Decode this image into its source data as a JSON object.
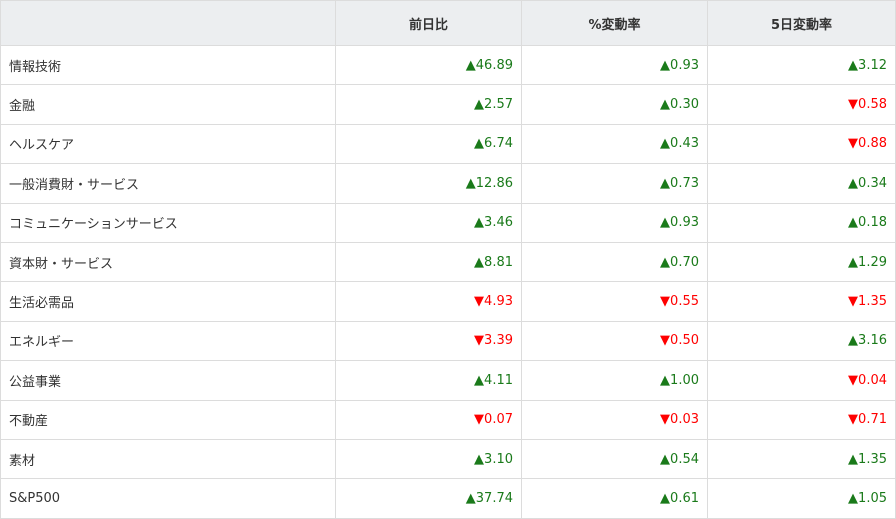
{
  "headers": [
    "",
    "前日比",
    "%変動率",
    "5日変動率"
  ],
  "colors": {
    "up": "#1a7a1a",
    "down": "#ff0000"
  },
  "rows": [
    {
      "name": "情報技術",
      "vals": [
        [
          "up",
          "46.89"
        ],
        [
          "up",
          "0.93"
        ],
        [
          "up",
          "3.12"
        ]
      ]
    },
    {
      "name": "金融",
      "vals": [
        [
          "up",
          "2.57"
        ],
        [
          "up",
          "0.30"
        ],
        [
          "down",
          "0.58"
        ]
      ]
    },
    {
      "name": "ヘルスケア",
      "vals": [
        [
          "up",
          "6.74"
        ],
        [
          "up",
          "0.43"
        ],
        [
          "down",
          "0.88"
        ]
      ]
    },
    {
      "name": "一般消費財・サービス",
      "vals": [
        [
          "up",
          "12.86"
        ],
        [
          "up",
          "0.73"
        ],
        [
          "up",
          "0.34"
        ]
      ]
    },
    {
      "name": "コミュニケーションサービス",
      "vals": [
        [
          "up",
          "3.46"
        ],
        [
          "up",
          "0.93"
        ],
        [
          "up",
          "0.18"
        ]
      ]
    },
    {
      "name": "資本財・サービス",
      "vals": [
        [
          "up",
          "8.81"
        ],
        [
          "up",
          "0.70"
        ],
        [
          "up",
          "1.29"
        ]
      ]
    },
    {
      "name": "生活必需品",
      "vals": [
        [
          "down",
          "4.93"
        ],
        [
          "down",
          "0.55"
        ],
        [
          "down",
          "1.35"
        ]
      ]
    },
    {
      "name": "エネルギー",
      "vals": [
        [
          "down",
          "3.39"
        ],
        [
          "down",
          "0.50"
        ],
        [
          "up",
          "3.16"
        ]
      ]
    },
    {
      "name": "公益事業",
      "vals": [
        [
          "up",
          "4.11"
        ],
        [
          "up",
          "1.00"
        ],
        [
          "down",
          "0.04"
        ]
      ]
    },
    {
      "name": "不動産",
      "vals": [
        [
          "down",
          "0.07"
        ],
        [
          "down",
          "0.03"
        ],
        [
          "down",
          "0.71"
        ]
      ]
    },
    {
      "name": "素材",
      "vals": [
        [
          "up",
          "3.10"
        ],
        [
          "up",
          "0.54"
        ],
        [
          "up",
          "1.35"
        ]
      ]
    },
    {
      "name": "S&P500",
      "vals": [
        [
          "up",
          "37.74"
        ],
        [
          "up",
          "0.61"
        ],
        [
          "up",
          "1.05"
        ]
      ]
    }
  ]
}
